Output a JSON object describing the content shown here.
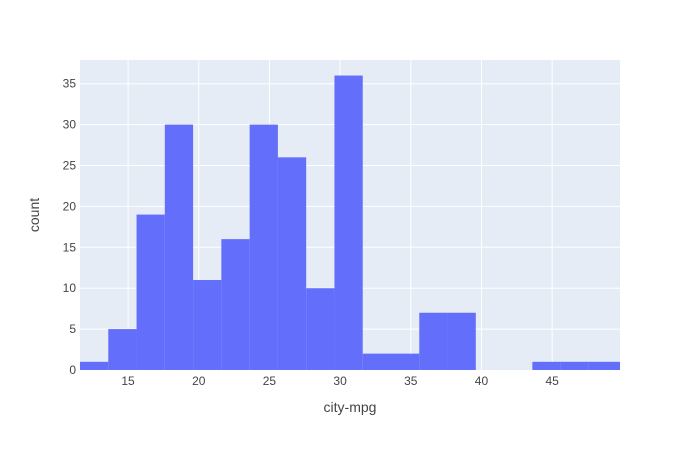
{
  "chart_data": {
    "type": "bar",
    "subtype": "histogram",
    "xlabel": "city-mpg",
    "ylabel": "count",
    "xlim": [
      11.6,
      49.8
    ],
    "ylim": [
      0,
      37.9
    ],
    "grid": true,
    "bin_edges": [
      11.6,
      13.6,
      15.6,
      17.6,
      19.6,
      21.6,
      23.6,
      25.6,
      27.6,
      29.6,
      31.6,
      33.6,
      35.6,
      37.6,
      39.6,
      41.6,
      43.6,
      45.6,
      47.6,
      49.8
    ],
    "values": [
      1,
      5,
      19,
      30,
      11,
      16,
      30,
      26,
      10,
      36,
      2,
      2,
      7,
      7,
      0,
      0,
      1,
      1,
      1
    ],
    "x_ticks": [
      15,
      20,
      25,
      30,
      35,
      40,
      45
    ],
    "y_ticks": [
      0,
      5,
      10,
      15,
      20,
      25,
      30,
      35
    ],
    "colors": {
      "bar": "#636efa",
      "plot_bg": "#e5ecf6",
      "grid": "#ffffff",
      "text": "#444444"
    }
  }
}
